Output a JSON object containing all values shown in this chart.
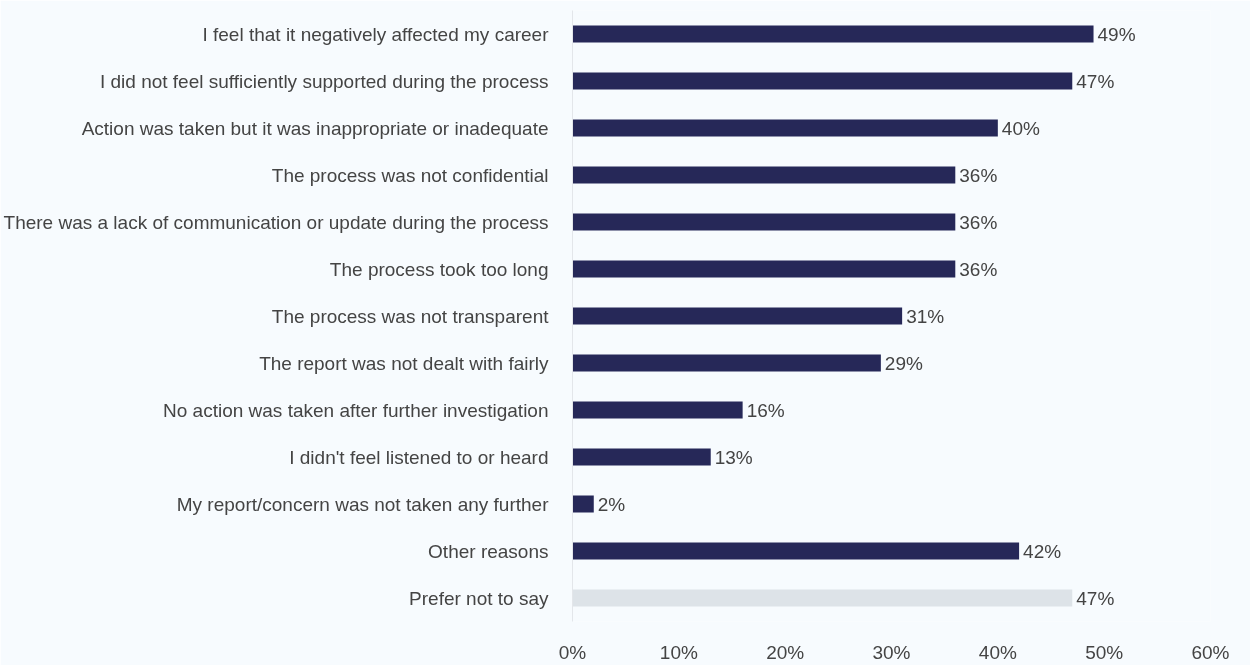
{
  "chart_data": {
    "type": "bar",
    "orientation": "horizontal",
    "categories": [
      "I feel that it negatively affected my career",
      "I did not feel sufficiently supported during the process",
      "Action was taken but it was inappropriate or inadequate",
      "The process was not confidential",
      "There was a lack of communication or update during the process",
      "The process took too long",
      "The process was not transparent",
      "The report was not dealt with fairly",
      "No action was taken after further investigation",
      "I didn't feel listened to or heard",
      "My report/concern was not taken any further",
      "Other reasons",
      "Prefer not to say"
    ],
    "values": [
      49,
      47,
      40,
      36,
      36,
      36,
      31,
      29,
      16,
      13,
      2,
      42,
      47
    ],
    "value_labels": [
      "49%",
      "47%",
      "40%",
      "36%",
      "36%",
      "36%",
      "31%",
      "29%",
      "16%",
      "13%",
      "2%",
      "42%",
      "47%"
    ],
    "colors": [
      "#262858",
      "#262858",
      "#262858",
      "#262858",
      "#262858",
      "#262858",
      "#262858",
      "#262858",
      "#262858",
      "#262858",
      "#262858",
      "#262858",
      "#dde3e8"
    ],
    "xlim": [
      0,
      60
    ],
    "xticks": [
      {
        "value": 0,
        "label": "0%"
      },
      {
        "value": 10,
        "label": "10%"
      },
      {
        "value": 20,
        "label": "20%"
      },
      {
        "value": 30,
        "label": "30%"
      },
      {
        "value": 40,
        "label": "40%"
      },
      {
        "value": 50,
        "label": "50%"
      },
      {
        "value": 60,
        "label": "60%"
      }
    ],
    "grid": false
  }
}
